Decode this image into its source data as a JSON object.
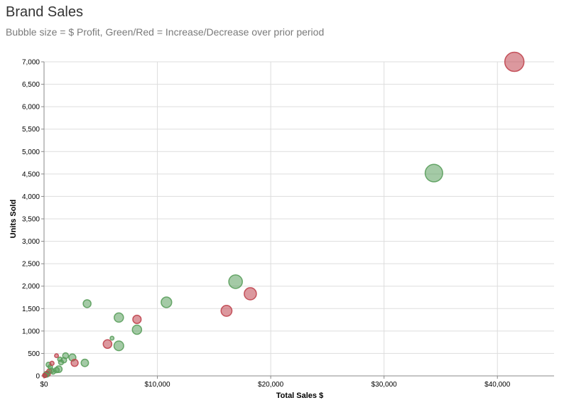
{
  "header": {
    "title": "Brand Sales",
    "subtitle": "Bubble size = $ Profit, Green/Red = Increase/Decrease over prior period"
  },
  "colors": {
    "increase": "#5a9e5c",
    "decrease": "#c0444e"
  },
  "chart_data": {
    "type": "scatter",
    "title": "Brand Sales",
    "subtitle": "Bubble size = $ Profit, Green/Red = Increase/Decrease over prior period",
    "xlabel": "Total Sales $",
    "ylabel": "Units Sold",
    "xlim": [
      0,
      45000
    ],
    "ylim": [
      0,
      7000
    ],
    "x_ticks": [
      0,
      10000,
      20000,
      30000,
      40000
    ],
    "x_tick_labels": [
      "$0",
      "$10,000",
      "$20,000",
      "$30,000",
      "$40,000"
    ],
    "y_ticks": [
      0,
      500,
      1000,
      1500,
      2000,
      2500,
      3000,
      3500,
      4000,
      4500,
      5000,
      5500,
      6000,
      6500,
      7000
    ],
    "y_tick_labels": [
      "0",
      "500",
      "1,000",
      "1,500",
      "2,000",
      "2,500",
      "3,000",
      "3,500",
      "4,000",
      "4,500",
      "5,000",
      "5,500",
      "6,000",
      "6,500",
      "7,000"
    ],
    "grid": true,
    "size_encoding": "profit",
    "color_encoding": "change",
    "points": [
      {
        "x": 41500,
        "y": 7000,
        "size": 150,
        "change": "decrease"
      },
      {
        "x": 34400,
        "y": 4520,
        "size": 125,
        "change": "increase"
      },
      {
        "x": 16900,
        "y": 2100,
        "size": 75,
        "change": "increase"
      },
      {
        "x": 18200,
        "y": 1830,
        "size": 60,
        "change": "decrease"
      },
      {
        "x": 10800,
        "y": 1640,
        "size": 45,
        "change": "increase"
      },
      {
        "x": 16100,
        "y": 1450,
        "size": 48,
        "change": "decrease"
      },
      {
        "x": 3800,
        "y": 1610,
        "size": 25,
        "change": "increase"
      },
      {
        "x": 6600,
        "y": 1300,
        "size": 35,
        "change": "increase"
      },
      {
        "x": 8200,
        "y": 1260,
        "size": 28,
        "change": "decrease"
      },
      {
        "x": 8200,
        "y": 1030,
        "size": 35,
        "change": "increase"
      },
      {
        "x": 6000,
        "y": 840,
        "size": 6,
        "change": "increase"
      },
      {
        "x": 5600,
        "y": 710,
        "size": 30,
        "change": "decrease"
      },
      {
        "x": 6600,
        "y": 670,
        "size": 38,
        "change": "increase"
      },
      {
        "x": 1900,
        "y": 450,
        "size": 14,
        "change": "increase"
      },
      {
        "x": 1100,
        "y": 450,
        "size": 6,
        "change": "decrease"
      },
      {
        "x": 2500,
        "y": 410,
        "size": 20,
        "change": "increase"
      },
      {
        "x": 1400,
        "y": 370,
        "size": 8,
        "change": "increase"
      },
      {
        "x": 1750,
        "y": 350,
        "size": 12,
        "change": "increase"
      },
      {
        "x": 3600,
        "y": 290,
        "size": 22,
        "change": "increase"
      },
      {
        "x": 2700,
        "y": 290,
        "size": 20,
        "change": "decrease"
      },
      {
        "x": 1500,
        "y": 300,
        "size": 10,
        "change": "increase"
      },
      {
        "x": 700,
        "y": 280,
        "size": 7,
        "change": "decrease"
      },
      {
        "x": 400,
        "y": 250,
        "size": 10,
        "change": "increase"
      },
      {
        "x": 550,
        "y": 200,
        "size": 8,
        "change": "increase"
      },
      {
        "x": 1300,
        "y": 150,
        "size": 18,
        "change": "increase"
      },
      {
        "x": 1100,
        "y": 130,
        "size": 12,
        "change": "increase"
      },
      {
        "x": 650,
        "y": 120,
        "size": 10,
        "change": "increase"
      },
      {
        "x": 800,
        "y": 90,
        "size": 9,
        "change": "increase"
      },
      {
        "x": 450,
        "y": 100,
        "size": 10,
        "change": "decrease"
      },
      {
        "x": 300,
        "y": 60,
        "size": 8,
        "change": "increase"
      },
      {
        "x": 200,
        "y": 50,
        "size": 8,
        "change": "decrease"
      },
      {
        "x": 350,
        "y": 40,
        "size": 9,
        "change": "decrease"
      },
      {
        "x": 100,
        "y": 30,
        "size": 7,
        "change": "increase"
      },
      {
        "x": 150,
        "y": 20,
        "size": 8,
        "change": "decrease"
      },
      {
        "x": 50,
        "y": 10,
        "size": 7,
        "change": "decrease"
      },
      {
        "x": 250,
        "y": 15,
        "size": 6,
        "change": "increase"
      },
      {
        "x": 80,
        "y": 5,
        "size": 6,
        "change": "decrease"
      }
    ]
  }
}
